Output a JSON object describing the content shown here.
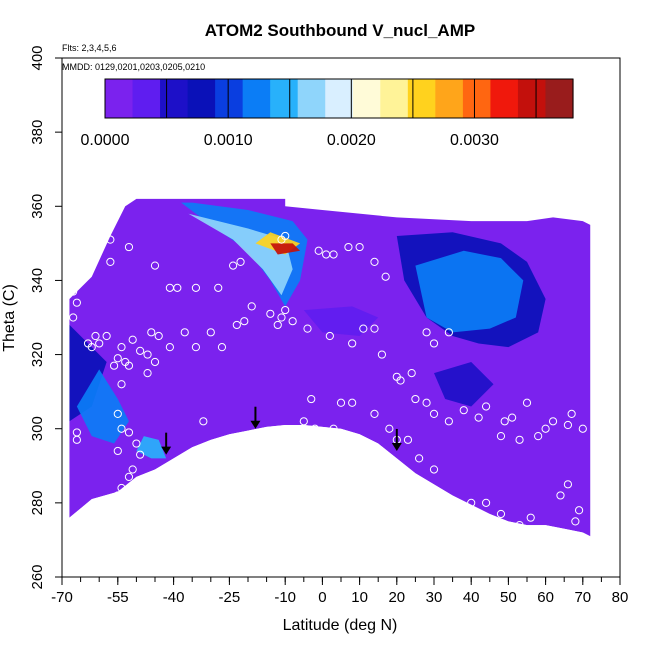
{
  "chart_data": {
    "type": "heatmap",
    "title": "ATOM2 Southbound V_nucl_AMP",
    "notes": [
      "Flts: 2,3,4,5,6",
      "MMDD: 0129,0201,0203,0205,0210"
    ],
    "xlabel": "Latitude (deg N)",
    "ylabel": "Theta (C)",
    "xlim": [
      -70,
      80
    ],
    "ylim": [
      260,
      400
    ],
    "x_ticks": [
      -70,
      -55,
      -40,
      -25,
      -10,
      0,
      10,
      20,
      30,
      40,
      50,
      60,
      70,
      80
    ],
    "y_ticks": [
      260,
      280,
      300,
      320,
      340,
      360,
      380,
      400
    ],
    "colorbar": {
      "range": [
        0,
        0.0038
      ],
      "tick_values": [
        0,
        0.001,
        0.002,
        0.003
      ],
      "tick_labels": [
        "0.0000",
        "0.0010",
        "0.0020",
        "0.0030"
      ],
      "colors": [
        "#7b22ee",
        "#5f1df0",
        "#1d10c8",
        "#0a11b8",
        "#0a3ee0",
        "#0b7df6",
        "#28b1fb",
        "#8fd5fb",
        "#d9efff",
        "#fffbd8",
        "#fff398",
        "#ffd21e",
        "#ffa51a",
        "#ff6611",
        "#f0180c",
        "#c3100c",
        "#991c1c"
      ],
      "boundaries": [
        0,
        0.0005,
        0.001,
        0.0015,
        0.002,
        0.0025,
        0.003,
        0.0035
      ]
    },
    "base_color": "#7b22ee",
    "terrain_boundary": [
      [
        -68,
        276
      ],
      [
        -62,
        281
      ],
      [
        -55,
        283
      ],
      [
        -50,
        287
      ],
      [
        -45,
        289
      ],
      [
        -40,
        292
      ],
      [
        -35,
        295
      ],
      [
        -30,
        297
      ],
      [
        -25,
        298.5
      ],
      [
        -20,
        299.5
      ],
      [
        -15,
        300.5
      ],
      [
        -10,
        301
      ],
      [
        -5,
        301
      ],
      [
        0,
        300.5
      ],
      [
        5,
        300
      ],
      [
        10,
        298.5
      ],
      [
        15,
        296
      ],
      [
        20,
        292
      ],
      [
        25,
        288
      ],
      [
        30,
        285
      ],
      [
        35,
        282
      ],
      [
        40,
        279.5
      ],
      [
        45,
        277
      ],
      [
        50,
        275
      ],
      [
        55,
        274
      ],
      [
        60,
        274
      ],
      [
        65,
        273
      ],
      [
        70,
        272
      ],
      [
        72,
        271
      ]
    ],
    "data_extent": {
      "lat": [
        -68,
        72
      ],
      "theta_top": [
        [
          -68,
          335
        ],
        [
          -62,
          341
        ],
        [
          -57,
          352
        ],
        [
          -53,
          360
        ],
        [
          -50,
          362
        ],
        [
          -10,
          362
        ],
        [
          -10,
          360
        ],
        [
          0,
          359
        ],
        [
          20,
          357
        ],
        [
          40,
          356
        ],
        [
          55,
          356
        ],
        [
          62,
          357
        ],
        [
          70,
          356
        ],
        [
          72,
          355
        ]
      ]
    },
    "features": [
      {
        "polygon": [
          [
            -48,
            361
          ],
          [
            -38,
            361
          ],
          [
            -30,
            355
          ],
          [
            -20,
            348
          ],
          [
            -14,
            340
          ],
          [
            -10,
            333
          ],
          [
            -6,
            340
          ],
          [
            -4,
            351
          ],
          [
            -8,
            356
          ],
          [
            -20,
            359
          ],
          [
            -35,
            361
          ]
        ],
        "value": 0.0012
      },
      {
        "polygon": [
          [
            -36,
            358
          ],
          [
            -24,
            351
          ],
          [
            -16,
            343
          ],
          [
            -11,
            336
          ],
          [
            -8,
            343
          ],
          [
            -10,
            351
          ],
          [
            -20,
            354
          ]
        ],
        "value": 0.0016
      },
      {
        "polygon": [
          [
            -18,
            350
          ],
          [
            -10,
            347
          ],
          [
            -6,
            350
          ],
          [
            -14,
            353
          ]
        ],
        "value": 0.0024
      },
      {
        "polygon": [
          [
            -14,
            350
          ],
          [
            -8,
            350
          ],
          [
            -6,
            348
          ],
          [
            -12,
            347
          ]
        ],
        "value": 0.0032
      },
      {
        "polygon": [
          [
            20,
            352
          ],
          [
            35,
            353
          ],
          [
            48,
            350
          ],
          [
            55,
            345
          ],
          [
            60,
            335
          ],
          [
            58,
            326
          ],
          [
            50,
            322
          ],
          [
            42,
            323
          ],
          [
            35,
            325
          ],
          [
            28,
            330
          ],
          [
            22,
            340
          ]
        ],
        "value": 0.0008
      },
      {
        "polygon": [
          [
            25,
            344
          ],
          [
            38,
            348
          ],
          [
            48,
            346
          ],
          [
            54,
            340
          ],
          [
            52,
            330
          ],
          [
            45,
            327
          ],
          [
            35,
            326
          ],
          [
            28,
            330
          ]
        ],
        "value": 0.0012
      },
      {
        "polygon": [
          [
            -68,
            328
          ],
          [
            -62,
            322
          ],
          [
            -58,
            318
          ],
          [
            -62,
            306
          ],
          [
            -68,
            302
          ]
        ],
        "value": 0.0007
      },
      {
        "polygon": [
          [
            -60,
            316
          ],
          [
            -55,
            308
          ],
          [
            -52,
            302
          ],
          [
            -56,
            296
          ],
          [
            -62,
            298
          ],
          [
            -66,
            306
          ]
        ],
        "value": 0.0011
      },
      {
        "polygon": [
          [
            -50,
            294
          ],
          [
            -46,
            292
          ],
          [
            -42,
            292
          ],
          [
            -44,
            297
          ],
          [
            -48,
            298
          ]
        ],
        "value": 0.0013
      },
      {
        "polygon": [
          [
            -5,
            332
          ],
          [
            8,
            333
          ],
          [
            15,
            330
          ],
          [
            10,
            325
          ],
          [
            0,
            326
          ]
        ],
        "value": 0.0004
      },
      {
        "polygon": [
          [
            30,
            315
          ],
          [
            40,
            318
          ],
          [
            46,
            312
          ],
          [
            40,
            306
          ],
          [
            33,
            308
          ]
        ],
        "value": 0.0006
      }
    ],
    "arrows": [
      {
        "lat": -42,
        "theta": 293
      },
      {
        "lat": -18,
        "theta": 300
      },
      {
        "lat": 20,
        "theta": 294
      }
    ],
    "points": [
      [
        -67,
        337
      ],
      [
        -66,
        334
      ],
      [
        -67,
        330
      ],
      [
        -66,
        299
      ],
      [
        -66,
        297
      ],
      [
        -63,
        323
      ],
      [
        -62,
        322
      ],
      [
        -60,
        323
      ],
      [
        -58,
        325
      ],
      [
        -56,
        317
      ],
      [
        -55,
        319
      ],
      [
        -54,
        322
      ],
      [
        -53,
        318
      ],
      [
        -54,
        312
      ],
      [
        -52,
        317
      ],
      [
        -55,
        304
      ],
      [
        -54,
        300
      ],
      [
        -52,
        299
      ],
      [
        -55,
        294
      ],
      [
        -50,
        296
      ],
      [
        -49,
        293
      ],
      [
        -51,
        289
      ],
      [
        -52,
        287
      ],
      [
        -54,
        284
      ],
      [
        -55,
        282
      ],
      [
        -56,
        281
      ],
      [
        -46,
        326
      ],
      [
        -44,
        325
      ],
      [
        -41,
        322
      ],
      [
        -37,
        326
      ],
      [
        -34,
        322
      ],
      [
        -30,
        326
      ],
      [
        -27,
        322
      ],
      [
        -23,
        328
      ],
      [
        -21,
        329
      ],
      [
        -19,
        333
      ],
      [
        -10,
        332
      ],
      [
        -11,
        330
      ],
      [
        -12,
        328
      ],
      [
        -8,
        329
      ],
      [
        -4,
        327
      ],
      [
        2,
        325
      ],
      [
        8,
        323
      ],
      [
        11,
        327
      ],
      [
        14,
        327
      ],
      [
        16,
        320
      ],
      [
        20,
        314
      ],
      [
        21,
        313
      ],
      [
        24,
        315
      ],
      [
        25,
        308
      ],
      [
        28,
        307
      ],
      [
        30,
        304
      ],
      [
        34,
        302
      ],
      [
        38,
        305
      ],
      [
        42,
        303
      ],
      [
        44,
        306
      ],
      [
        48,
        298
      ],
      [
        49,
        302
      ],
      [
        51,
        303
      ],
      [
        53,
        297
      ],
      [
        55,
        307
      ],
      [
        58,
        298
      ],
      [
        60,
        300
      ],
      [
        62,
        302
      ],
      [
        66,
        301
      ],
      [
        67,
        304
      ],
      [
        70,
        300
      ],
      [
        -57,
        351
      ],
      [
        -57,
        345
      ],
      [
        -52,
        349
      ],
      [
        -45,
        344
      ],
      [
        -41,
        338
      ],
      [
        -39,
        338
      ],
      [
        -34,
        338
      ],
      [
        -28,
        338
      ],
      [
        -24,
        344
      ],
      [
        -22,
        345
      ],
      [
        -11,
        351
      ],
      [
        -10,
        352
      ],
      [
        -1,
        348
      ],
      [
        1,
        347
      ],
      [
        3,
        347
      ],
      [
        7,
        349
      ],
      [
        10,
        349
      ],
      [
        14,
        345
      ],
      [
        17,
        341
      ],
      [
        -14,
        331
      ],
      [
        -3,
        308
      ],
      [
        5,
        307
      ],
      [
        8,
        307
      ],
      [
        14,
        304
      ],
      [
        18,
        300
      ],
      [
        20,
        297
      ],
      [
        23,
        297
      ],
      [
        26,
        292
      ],
      [
        30,
        289
      ],
      [
        -35,
        287
      ],
      [
        -30,
        290
      ],
      [
        -25,
        293
      ],
      [
        -20,
        297
      ],
      [
        -16,
        298
      ],
      [
        -11,
        299
      ],
      [
        -8,
        299
      ],
      [
        -2,
        300
      ],
      [
        3,
        300
      ],
      [
        40,
        280
      ],
      [
        44,
        280
      ],
      [
        48,
        277
      ],
      [
        53,
        274
      ],
      [
        56,
        276
      ],
      [
        64,
        282
      ],
      [
        66,
        285
      ],
      [
        69,
        278
      ],
      [
        68,
        275
      ],
      [
        -32,
        302
      ],
      [
        -5,
        302
      ],
      [
        30,
        323
      ],
      [
        34,
        326
      ],
      [
        28,
        326
      ],
      [
        -61,
        325
      ],
      [
        -51,
        324
      ],
      [
        -49,
        321
      ],
      [
        -47,
        315
      ],
      [
        -45,
        318
      ],
      [
        -47,
        320
      ]
    ]
  }
}
